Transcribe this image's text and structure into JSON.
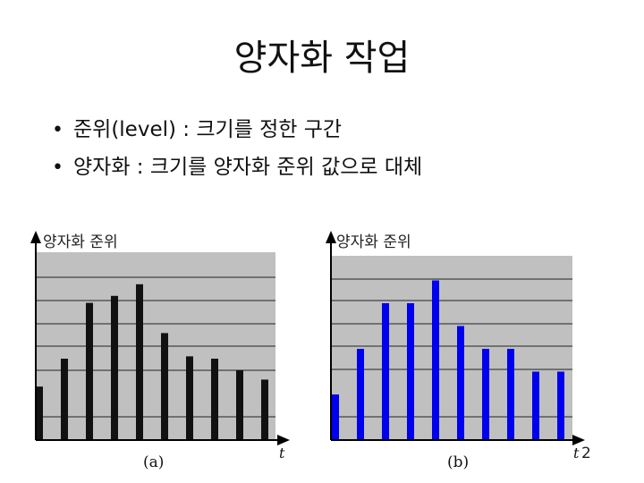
{
  "title": "양자화 작업",
  "bullets": [
    "준위(level) : 크기를 정한 구간",
    "양자화 : 크기를 양자화 준위 값으로 대체"
  ],
  "colors": {
    "panel": "#c0c0c0",
    "bar_a": "#111111",
    "bar_b": "#0000ee"
  },
  "diagrams": [
    {
      "id": "a",
      "ylabel": "양자화 준위",
      "xlabel": "t",
      "caption": "(a)",
      "values": [
        2.3,
        3.5,
        5.9,
        6.2,
        6.7,
        4.6,
        3.6,
        3.5,
        3.0,
        2.6
      ]
    },
    {
      "id": "b",
      "ylabel": "양자화 준위",
      "xlabel": "t",
      "caption": "(b)",
      "extra": "2",
      "values": [
        2,
        4,
        6,
        6,
        7,
        5,
        4,
        4,
        3,
        3
      ]
    }
  ]
}
